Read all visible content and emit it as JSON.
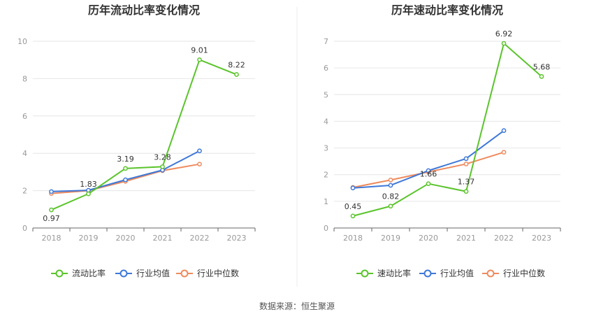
{
  "source": "数据来源：恒生聚源",
  "chart_data": [
    {
      "type": "line",
      "title": "历年流动比率变化情况",
      "categories": [
        "2018",
        "2019",
        "2020",
        "2021",
        "2022",
        "2023"
      ],
      "ylim": [
        0,
        10
      ],
      "yticks": [
        0,
        2,
        4,
        6,
        8,
        10
      ],
      "grid": true,
      "legend_position": "bottom",
      "series": [
        {
          "name": "流动比率",
          "color": "#5ac42b",
          "values": [
            0.97,
            1.83,
            3.19,
            3.28,
            9.01,
            8.22
          ],
          "labels": [
            "0.97",
            "1.83",
            "3.19",
            "3.28",
            "9.01",
            "8.22"
          ]
        },
        {
          "name": "行业均值",
          "color": "#3e78d8",
          "values": [
            1.95,
            2.02,
            2.58,
            3.1,
            4.13,
            null
          ]
        },
        {
          "name": "行业中位数",
          "color": "#ee8a5d",
          "values": [
            1.85,
            2.0,
            2.5,
            3.07,
            3.42,
            null
          ]
        }
      ]
    },
    {
      "type": "line",
      "title": "历年速动比率变化情况",
      "categories": [
        "2018",
        "2019",
        "2020",
        "2021",
        "2022",
        "2023"
      ],
      "ylim": [
        0,
        7
      ],
      "yticks": [
        0,
        1,
        2,
        3,
        4,
        5,
        6,
        7
      ],
      "grid": true,
      "legend_position": "bottom",
      "series": [
        {
          "name": "速动比率",
          "color": "#5ac42b",
          "values": [
            0.45,
            0.82,
            1.66,
            1.37,
            6.92,
            5.68
          ],
          "labels": [
            "0.45",
            "0.82",
            "1.66",
            "1.37",
            "6.92",
            "5.68"
          ]
        },
        {
          "name": "行业均值",
          "color": "#3e78d8",
          "values": [
            1.5,
            1.6,
            2.15,
            2.6,
            3.65,
            null
          ]
        },
        {
          "name": "行业中位数",
          "color": "#ee8a5d",
          "values": [
            1.52,
            1.8,
            2.1,
            2.4,
            2.84,
            null
          ]
        }
      ]
    }
  ]
}
